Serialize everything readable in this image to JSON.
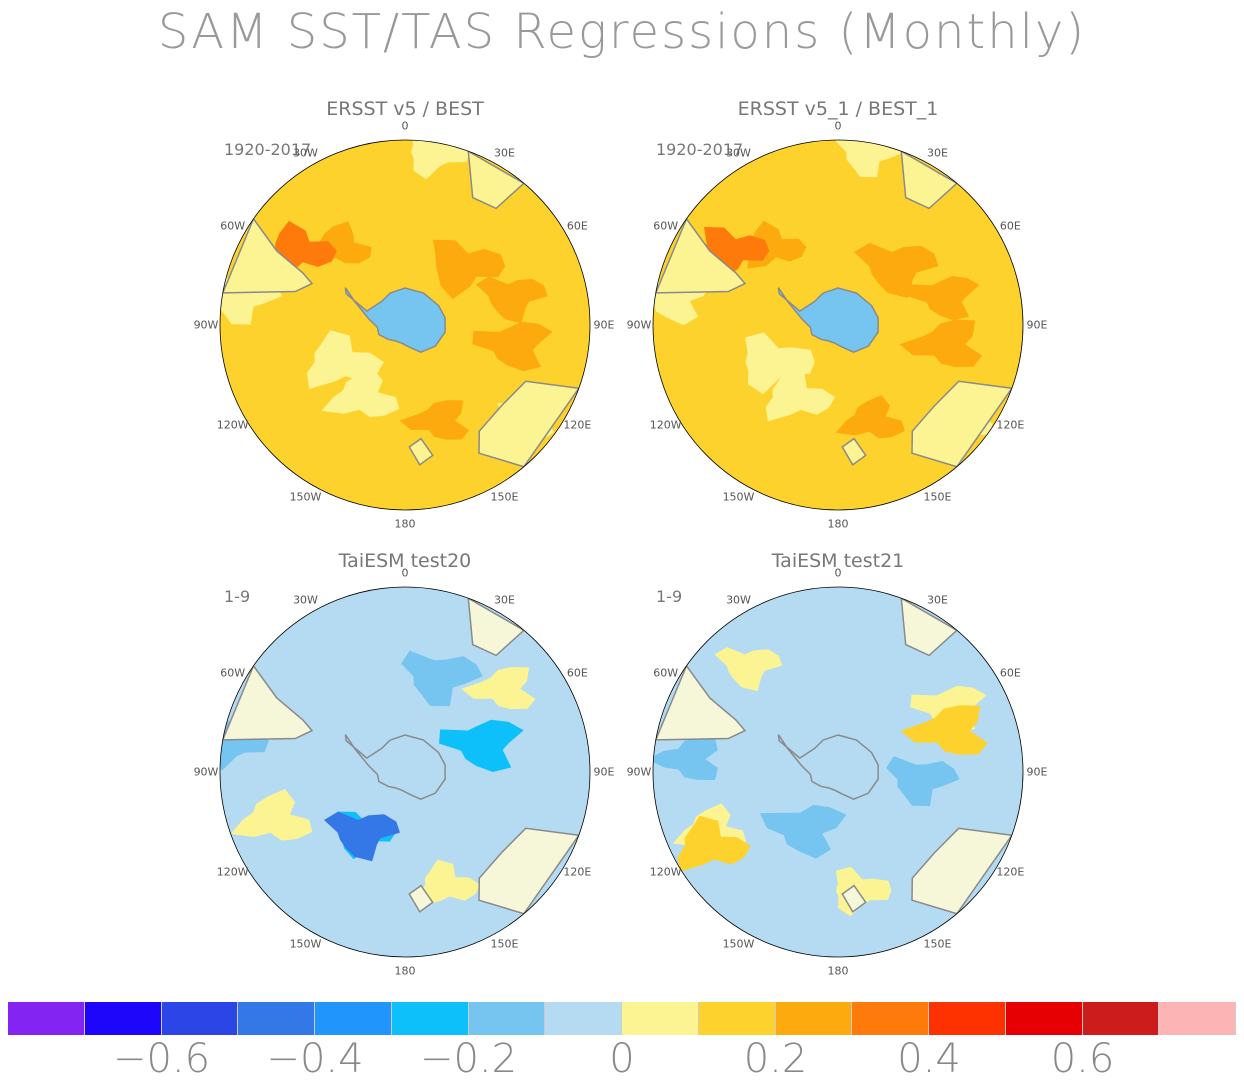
{
  "title": "SAM SST/TAS Regressions (Monthly)",
  "colors": {
    "land": "#f6f7d9",
    "coast": "#8a8a8a",
    "border": "#000000"
  },
  "colorbar": {
    "colors": [
      "#8424f2",
      "#1e06fb",
      "#2c45e7",
      "#3478e8",
      "#2096fc",
      "#0dc0f9",
      "#76c5f1",
      "#b4dbf2",
      "#fcf492",
      "#fed22c",
      "#fcaa0e",
      "#fe7a0a",
      "#fe3200",
      "#e60003",
      "#cd1c1c",
      "#fdb4b4"
    ],
    "labels": [
      "−0.6",
      "−0.4",
      "−0.2",
      "0",
      "0.2",
      "0.4",
      "0.6"
    ],
    "label_positions": [
      2,
      4,
      6,
      8,
      10,
      12,
      14
    ]
  },
  "lon_labels": [
    "0",
    "30E",
    "60E",
    "90E",
    "120E",
    "150E",
    "180",
    "150W",
    "120W",
    "90W",
    "60W",
    "30W"
  ],
  "chart_data": [
    {
      "type": "heatmap",
      "projection": "south-polar-stereographic",
      "title": "ERSST v5 / BEST",
      "period": "1920-2017",
      "field_levels": {
        "ocean": 0.15,
        "antarctica": -0.15,
        "patches": [
          {
            "lon": -40,
            "rad": 0.55,
            "level": 0.25
          },
          {
            "lon": -55,
            "rad": 0.7,
            "level": 0.35
          },
          {
            "lon": 45,
            "rad": 0.45,
            "level": 0.25
          },
          {
            "lon": 75,
            "rad": 0.6,
            "level": 0.25
          },
          {
            "lon": 100,
            "rad": 0.6,
            "level": 0.25
          },
          {
            "lon": 160,
            "rad": 0.55,
            "level": 0.25
          },
          {
            "lon": -150,
            "rad": 0.45,
            "level": 0.05
          },
          {
            "lon": -120,
            "rad": 0.4,
            "level": 0.05
          },
          {
            "lon": 10,
            "rad": 0.95,
            "level": 0.05
          },
          {
            "lon": -80,
            "rad": 0.9,
            "level": 0.05
          },
          {
            "lon": 125,
            "rad": 0.85,
            "level": 0.05
          }
        ]
      }
    },
    {
      "type": "heatmap",
      "projection": "south-polar-stereographic",
      "title": "ERSST v5_1 / BEST_1",
      "period": "1920-2017",
      "field_levels": {
        "ocean": 0.15,
        "antarctica": -0.15,
        "patches": [
          {
            "lon": -40,
            "rad": 0.55,
            "level": 0.25
          },
          {
            "lon": -55,
            "rad": 0.7,
            "level": 0.35
          },
          {
            "lon": 45,
            "rad": 0.45,
            "level": 0.25
          },
          {
            "lon": 75,
            "rad": 0.6,
            "level": 0.25
          },
          {
            "lon": 100,
            "rad": 0.6,
            "level": 0.25
          },
          {
            "lon": 160,
            "rad": 0.55,
            "level": 0.25
          },
          {
            "lon": -150,
            "rad": 0.45,
            "level": 0.05
          },
          {
            "lon": -120,
            "rad": 0.4,
            "level": 0.05
          },
          {
            "lon": 10,
            "rad": 0.95,
            "level": 0.05
          },
          {
            "lon": -80,
            "rad": 0.9,
            "level": 0.05
          },
          {
            "lon": 125,
            "rad": 0.85,
            "level": 0.05
          }
        ]
      }
    },
    {
      "type": "heatmap",
      "projection": "south-polar-stereographic",
      "title": "TaiESM test20",
      "period": "1-9",
      "field_levels": {
        "ocean": -0.05,
        "antarctica": -0.05,
        "patches": [
          {
            "lon": -145,
            "rad": 0.4,
            "level": -0.25
          },
          {
            "lon": -145,
            "rad": 0.4,
            "level": -0.45
          },
          {
            "lon": 70,
            "rad": 0.45,
            "level": -0.25
          },
          {
            "lon": 50,
            "rad": 0.7,
            "level": 0.05
          },
          {
            "lon": -110,
            "rad": 0.75,
            "level": 0.05
          },
          {
            "lon": 160,
            "rad": 0.65,
            "level": 0.05
          },
          {
            "lon": -80,
            "rad": 0.95,
            "level": -0.15
          },
          {
            "lon": 20,
            "rad": 0.55,
            "level": -0.15
          }
        ]
      }
    },
    {
      "type": "heatmap",
      "projection": "south-polar-stereographic",
      "title": "TaiESM test21",
      "period": "1-9",
      "field_levels": {
        "ocean": -0.05,
        "antarctica": -0.05,
        "patches": [
          {
            "lon": -40,
            "rad": 0.75,
            "level": 0.05
          },
          {
            "lon": 60,
            "rad": 0.7,
            "level": 0.05
          },
          {
            "lon": 70,
            "rad": 0.65,
            "level": 0.15
          },
          {
            "lon": -115,
            "rad": 0.75,
            "level": 0.05
          },
          {
            "lon": -120,
            "rad": 0.8,
            "level": 0.15
          },
          {
            "lon": 170,
            "rad": 0.65,
            "level": 0.05
          },
          {
            "lon": 95,
            "rad": 0.45,
            "level": -0.15
          },
          {
            "lon": -150,
            "rad": 0.35,
            "level": -0.15
          },
          {
            "lon": -85,
            "rad": 0.8,
            "level": -0.15
          }
        ]
      }
    }
  ]
}
